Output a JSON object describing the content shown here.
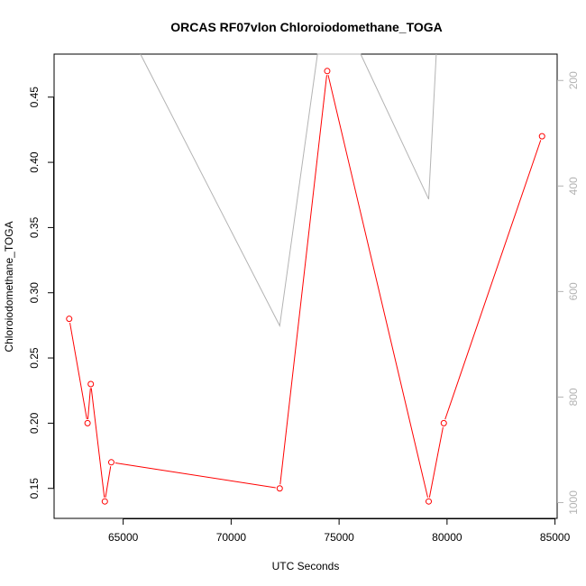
{
  "chart_data": {
    "type": "line",
    "title": "ORCAS RF07vlon Chloroiodomethane_TOGA",
    "xlabel": "UTC Seconds",
    "ylabel": "Chloroiodomethane_TOGA",
    "xlim": [
      61800,
      85100
    ],
    "ylim": [
      0.127,
      0.483
    ],
    "y2lim": [
      1030,
      150
    ],
    "x_ticks": [
      "65000",
      "70000",
      "75000",
      "80000",
      "85000"
    ],
    "y_ticks": [
      "0.15",
      "0.20",
      "0.25",
      "0.30",
      "0.35",
      "0.40",
      "0.45"
    ],
    "y2_ticks": [
      "200",
      "400",
      "600",
      "800",
      "1000"
    ],
    "grid": false,
    "series": [
      {
        "role": "primary",
        "color": "#ff0000",
        "marker": "open-circle",
        "x": [
          62500,
          63350,
          63500,
          64150,
          64450,
          72250,
          74450,
          79150,
          79850,
          84400
        ],
        "y": [
          0.28,
          0.2,
          0.23,
          0.14,
          0.17,
          0.15,
          0.47,
          0.14,
          0.2,
          0.42
        ]
      },
      {
        "role": "secondary",
        "color": "#b3b3b3",
        "x": [
          65800,
          72250,
          74000,
          76000,
          79150,
          79500
        ],
        "y": [
          150,
          665,
          150,
          150,
          425,
          150
        ]
      }
    ]
  }
}
